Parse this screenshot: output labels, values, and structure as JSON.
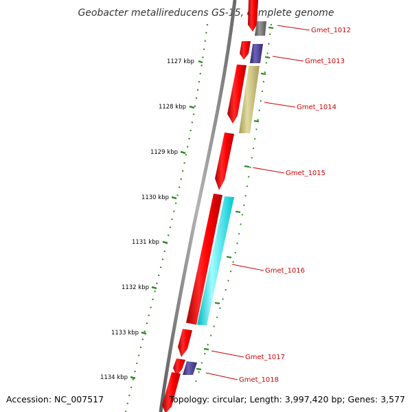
{
  "title": "Geobacter metallireducens GS-15, complete genome",
  "footer": {
    "accession": "Accession: NC_007517",
    "summary": "Topology: circular; Length: 3,997,420 bp; Genes: 3,577"
  },
  "scale": {
    "unit": "kbp",
    "ticks": [
      "1127 kbp",
      "1128 kbp",
      "1129 kbp",
      "1130 kbp",
      "1131 kbp",
      "1132 kbp",
      "1133 kbp",
      "1134 kbp"
    ]
  },
  "genes": [
    {
      "name": "Gmet_1012",
      "color": "#ff0000"
    },
    {
      "name": "Gmet_1013",
      "color": "#ff0000"
    },
    {
      "name": "Gmet_1014",
      "color": "#ff0000"
    },
    {
      "name": "Gmet_1015",
      "color": "#ff0000"
    },
    {
      "name": "Gmet_1016",
      "color": "#ff0000"
    },
    {
      "name": "Gmet_1017",
      "color": "#ff0000"
    },
    {
      "name": "Gmet_1018",
      "color": "#ff0000"
    }
  ],
  "feature_colors": {
    "cds": "#ff0000",
    "category_grey": "#707070",
    "category_purple": "#4b3f8f",
    "category_khaki": "#c8bf78",
    "category_cyan": "#00e5ee",
    "backbone": "#8a8a8a",
    "tick_green": "#2e8b22",
    "label_line": "#cc0000"
  }
}
